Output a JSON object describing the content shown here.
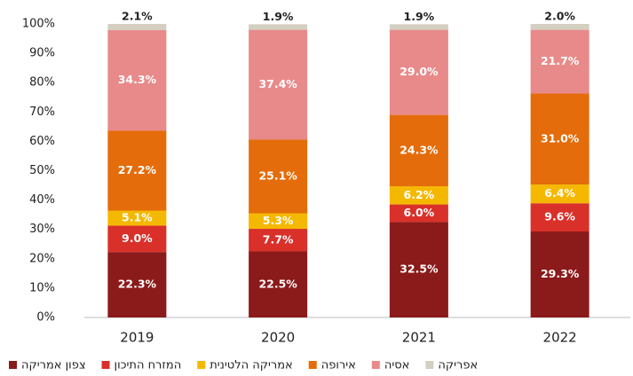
{
  "chart_data": {
    "type": "stacked_bar",
    "categories": [
      "2019",
      "2020",
      "2021",
      "2022"
    ],
    "series": [
      {
        "name": "צפון אמריקה",
        "color": "#8b1a1a",
        "values": [
          22.3,
          22.5,
          32.5,
          29.3
        ],
        "value_labels": [
          "22.3%",
          "22.5%",
          "32.5%",
          "29.3%"
        ]
      },
      {
        "name": "המזרח התיכון",
        "color": "#d9302a",
        "values": [
          9.0,
          7.7,
          6.0,
          9.6
        ],
        "value_labels": [
          "9.0%",
          "7.7%",
          "6.0%",
          "9.6%"
        ]
      },
      {
        "name": "אמריקה הלטינית",
        "color": "#f5b800",
        "values": [
          5.1,
          5.3,
          6.2,
          6.4
        ],
        "value_labels": [
          "5.1%",
          "5.3%",
          "6.2%",
          "6.4%"
        ]
      },
      {
        "name": "אירופה",
        "color": "#e46c0a",
        "values": [
          27.2,
          25.1,
          24.3,
          31.0
        ],
        "value_labels": [
          "27.2%",
          "25.1%",
          "24.3%",
          "31.0%"
        ]
      },
      {
        "name": "אסיה",
        "color": "#e88a8a",
        "values": [
          34.3,
          37.4,
          29.0,
          21.7
        ],
        "value_labels": [
          "34.3%",
          "37.4%",
          "29.0%",
          "21.7%"
        ]
      },
      {
        "name": "אפריקה",
        "color": "#d4cfc0",
        "values": [
          2.1,
          1.9,
          1.9,
          2.0
        ],
        "value_labels": [
          "2.1%",
          "1.9%",
          "1.9%",
          "2.0%"
        ]
      }
    ],
    "ylim": [
      0,
      100
    ],
    "yticks": [
      {
        "value": 0,
        "label": "0%"
      },
      {
        "value": 10,
        "label": "10%"
      },
      {
        "value": 20,
        "label": "20%"
      },
      {
        "value": 30,
        "label": "30%"
      },
      {
        "value": 40,
        "label": "40%"
      },
      {
        "value": 50,
        "label": "50%"
      },
      {
        "value": 60,
        "label": "60%"
      },
      {
        "value": 70,
        "label": "70%"
      },
      {
        "value": 80,
        "label": "80%"
      },
      {
        "value": 90,
        "label": "90%"
      },
      {
        "value": 100,
        "label": "100%"
      }
    ],
    "grid": false,
    "legend": "bottom"
  }
}
